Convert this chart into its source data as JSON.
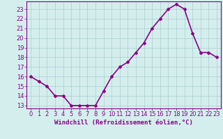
{
  "x": [
    0,
    1,
    2,
    3,
    4,
    5,
    6,
    7,
    8,
    9,
    10,
    11,
    12,
    13,
    14,
    15,
    16,
    17,
    18,
    19,
    20,
    21,
    22,
    23
  ],
  "y": [
    16,
    15.5,
    15,
    14,
    14,
    13,
    13,
    13,
    13,
    14.5,
    16,
    17,
    17.5,
    18.5,
    19.5,
    21,
    22,
    23,
    23.5,
    23,
    20.5,
    18.5,
    18.5,
    18
  ],
  "line_color": "#880088",
  "marker": "D",
  "marker_size": 2,
  "background_color": "#d4eeed",
  "grid_color": "#aacccc",
  "xlabel": "Windchill (Refroidissement éolien,°C)",
  "xlabel_fontsize": 6.5,
  "xlim_min": -0.5,
  "xlim_max": 23.5,
  "ylim_min": 12.7,
  "ylim_max": 23.8,
  "yticks": [
    13,
    14,
    15,
    16,
    17,
    18,
    19,
    20,
    21,
    22,
    23
  ],
  "xticks": [
    0,
    1,
    2,
    3,
    4,
    5,
    6,
    7,
    8,
    9,
    10,
    11,
    12,
    13,
    14,
    15,
    16,
    17,
    18,
    19,
    20,
    21,
    22,
    23
  ],
  "tick_fontsize": 6,
  "line_width": 1.2
}
